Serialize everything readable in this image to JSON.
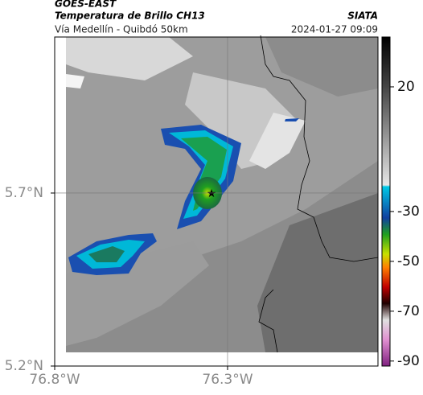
{
  "header": {
    "title": "GOES-EAST",
    "subtitle": "Temperatura de Brillo CH13",
    "source": "SIATA",
    "location": "Vía Medellín - Quibdó 50km",
    "datetime": "2024-01-27 09:09"
  },
  "map": {
    "xlim": [
      -76.8,
      -75.865
    ],
    "ylim": [
      5.2,
      6.151
    ],
    "xticks": [
      {
        "value": -76.8,
        "label": "76.8°W"
      },
      {
        "value": -76.3,
        "label": "76.3°W"
      }
    ],
    "yticks": [
      {
        "value": 5.2,
        "label": "5.2°N"
      },
      {
        "value": 5.7,
        "label": "5.7°N"
      }
    ],
    "grid": true
  },
  "colorbar": {
    "lim": [
      -92,
      40
    ],
    "ticks": [
      20,
      -30,
      -50,
      -70,
      -90
    ]
  }
}
